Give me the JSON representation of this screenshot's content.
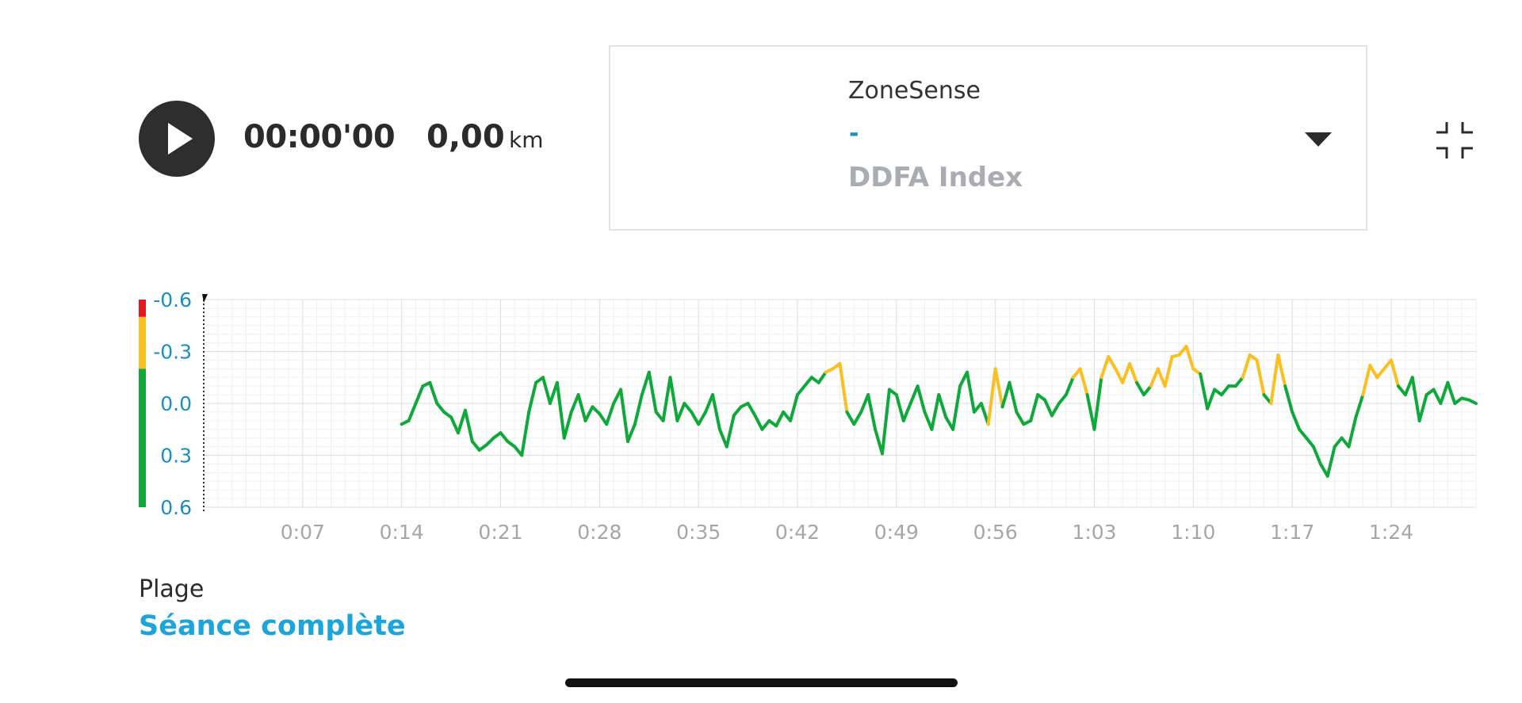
{
  "player": {
    "play_icon": "play-icon",
    "elapsed_time": "00:00'00",
    "distance": "0,00",
    "distance_unit": "km"
  },
  "metric_selector": {
    "label": "ZoneSense",
    "value": "-",
    "sub_label": "DDFA Index",
    "chevron_icon": "chevron-down-icon"
  },
  "collapse_icon": "collapse-icon",
  "range": {
    "label": "Plage",
    "value": "Séance complète"
  },
  "colors": {
    "green": "#0fa83a",
    "yellow": "#fbbf22",
    "red": "#e8171f",
    "axis_text": "#1b8fbf",
    "tick_text": "#a6a6a6",
    "range_value": "#1aa6dc"
  },
  "chart_data": {
    "type": "line",
    "y_ticks": [
      "-0.6",
      "-0.3",
      "0.0",
      "0.3",
      "0.6"
    ],
    "ylim": [
      -0.6,
      0.6
    ],
    "y_inverted": true,
    "x_ticks": [
      "0:07",
      "0:14",
      "0:21",
      "0:28",
      "0:35",
      "0:42",
      "0:49",
      "0:56",
      "1:03",
      "1:10",
      "1:17",
      "1:24"
    ],
    "x_unit": "minutes",
    "xlim": [
      0,
      90
    ],
    "grid": true,
    "zone_bar": [
      {
        "from": -0.6,
        "to": -0.5,
        "color": "red"
      },
      {
        "from": -0.5,
        "to": -0.2,
        "color": "yellow"
      },
      {
        "from": -0.2,
        "to": 0.6,
        "color": "green"
      }
    ],
    "series": [
      {
        "x": [
          14.0,
          14.5,
          15.0,
          15.5,
          16.0,
          16.5,
          17.0,
          17.5,
          18.0,
          18.5,
          19.0,
          19.5,
          20.0,
          20.5,
          21.0,
          21.5,
          22.0,
          22.5,
          23.0,
          23.5,
          24.0,
          24.5,
          25.0,
          25.5,
          26.0,
          26.5,
          27.0,
          27.5,
          28.0,
          28.5,
          29.0,
          29.5,
          30.0,
          30.5,
          31.0,
          31.5,
          32.0,
          32.5,
          33.0,
          33.5,
          34.0,
          34.5,
          35.0,
          35.5,
          36.0,
          36.5,
          37.0,
          37.5,
          38.0,
          38.5,
          39.0,
          39.5,
          40.0,
          40.5,
          41.0,
          41.5,
          42.0,
          42.5,
          43.0,
          43.5,
          44.0,
          44.5,
          45.0,
          45.5,
          46.0,
          46.5,
          47.0,
          47.5,
          48.0,
          48.5,
          49.0,
          49.5,
          50.0,
          50.5,
          51.0,
          51.5,
          52.0,
          52.5,
          53.0,
          53.5,
          54.0,
          54.5,
          55.0,
          55.5,
          56.0,
          56.5,
          57.0,
          57.5,
          58.0,
          58.5,
          59.0,
          59.5,
          60.0,
          60.5,
          61.0,
          61.5,
          62.0,
          62.5,
          63.0,
          63.5,
          64.0,
          64.5,
          65.0,
          65.5,
          66.0,
          66.5,
          67.0,
          67.5,
          68.0,
          68.5,
          69.0,
          69.5,
          70.0,
          70.5,
          71.0,
          71.5,
          72.0,
          72.5,
          73.0,
          73.5,
          74.0,
          74.5,
          75.0,
          75.5,
          76.0,
          76.5,
          77.0,
          77.5,
          78.0,
          78.5,
          79.0,
          79.5,
          80.0,
          80.5,
          81.0,
          81.5,
          82.0,
          82.5,
          83.0,
          83.5,
          84.0,
          84.5,
          85.0,
          85.5,
          86.0,
          86.5,
          87.0,
          87.5,
          88.0,
          88.5,
          89.0,
          89.5,
          90.0
        ],
        "y": [
          0.12,
          0.1,
          0.0,
          -0.1,
          -0.12,
          0.0,
          0.05,
          0.08,
          0.17,
          0.04,
          0.22,
          0.27,
          0.24,
          0.2,
          0.17,
          0.22,
          0.25,
          0.3,
          0.05,
          -0.12,
          -0.15,
          0.0,
          -0.12,
          0.2,
          0.05,
          -0.05,
          0.1,
          0.02,
          0.06,
          0.12,
          0.0,
          -0.08,
          0.22,
          0.12,
          -0.05,
          -0.18,
          0.05,
          0.1,
          -0.15,
          0.1,
          0.0,
          0.05,
          0.12,
          0.05,
          -0.05,
          0.15,
          0.25,
          0.07,
          0.02,
          0.0,
          0.07,
          0.15,
          0.1,
          0.13,
          0.05,
          0.1,
          -0.05,
          -0.1,
          -0.15,
          -0.12,
          -0.18,
          -0.2,
          -0.23,
          0.05,
          0.12,
          0.05,
          -0.05,
          0.15,
          0.29,
          -0.08,
          -0.05,
          0.1,
          0.0,
          -0.1,
          0.05,
          0.15,
          -0.05,
          0.08,
          0.15,
          -0.1,
          -0.18,
          0.05,
          0.0,
          0.12,
          -0.2,
          0.02,
          -0.12,
          0.05,
          0.12,
          0.1,
          -0.05,
          -0.02,
          0.07,
          0.0,
          -0.05,
          -0.15,
          -0.2,
          -0.05,
          0.15,
          -0.15,
          -0.27,
          -0.2,
          -0.12,
          -0.23,
          -0.12,
          -0.05,
          -0.1,
          -0.2,
          -0.1,
          -0.27,
          -0.28,
          -0.33,
          -0.2,
          -0.17,
          0.03,
          -0.08,
          -0.05,
          -0.1,
          -0.1,
          -0.15,
          -0.28,
          -0.25,
          -0.05,
          0.0,
          -0.28,
          -0.1,
          0.05,
          0.15,
          0.2,
          0.25,
          0.35,
          0.42,
          0.25,
          0.2,
          0.25,
          0.08,
          -0.05,
          -0.22,
          -0.15,
          -0.2,
          -0.25,
          -0.1,
          -0.05,
          -0.15,
          0.1,
          -0.05,
          -0.08,
          0.0,
          -0.12,
          0.0,
          -0.03,
          -0.02,
          0.0
        ]
      }
    ]
  }
}
